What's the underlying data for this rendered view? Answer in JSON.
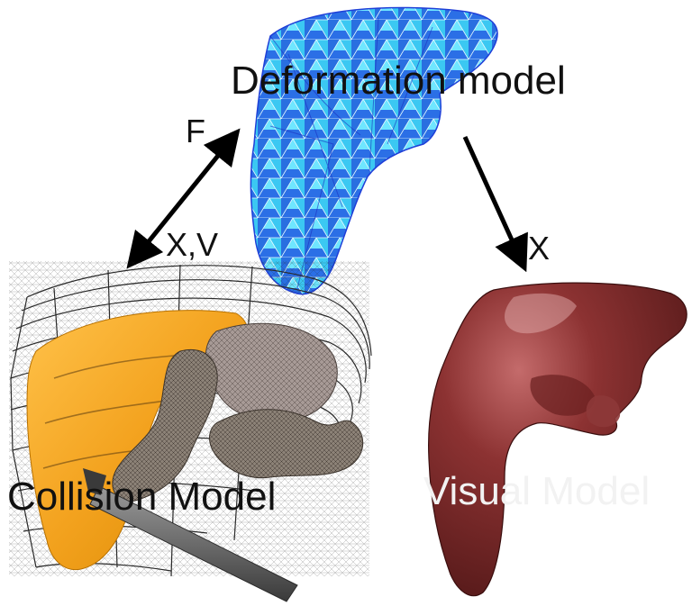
{
  "labels": {
    "deformation_model": "Deformation model",
    "collision_model": "Collision Model",
    "visual_model": "Visual Model",
    "force": "F",
    "position_velocity": "X,V",
    "position": "X"
  },
  "colors": {
    "deformation_light": "#37d8f5",
    "deformation_dark": "#1f3fd8",
    "collision_orange": "#f3a21e",
    "collision_mesh": "#2a2a2a",
    "intestine": "#8a7e72",
    "visual_liver": "#7a2a2a",
    "arrow": "#000000",
    "visual_text": "#f2f2f2",
    "label_text": "#111111"
  },
  "icons": [
    "liver-wireframe-icon",
    "ribcage-mesh-icon",
    "surgical-tool-icon",
    "liver-textured-icon"
  ]
}
